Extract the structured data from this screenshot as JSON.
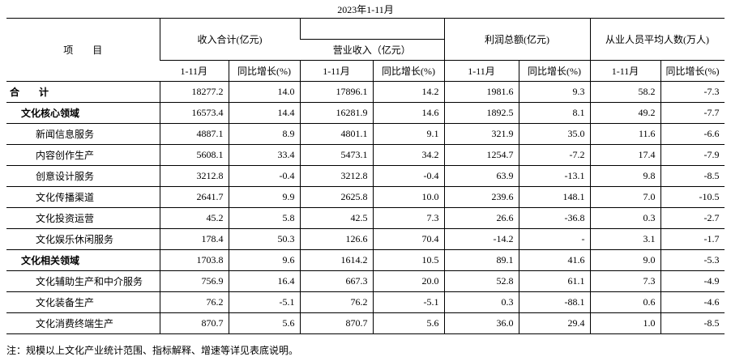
{
  "subtitle": "2023年1-11月",
  "table": {
    "item_header": "项　　目",
    "group_headers": [
      "收入合计(亿元)",
      "利润总额(亿元)",
      "从业人员平均人数(万人)"
    ],
    "sub_group_header": "营业收入（亿元）",
    "column_headers": [
      "1-11月",
      "同比增长(%)",
      "1-11月",
      "同比增长(%)",
      "1-11月",
      "同比增长(%)",
      "1-11月",
      "同比增长(%)"
    ],
    "rows": [
      {
        "name": "合　　计",
        "level": 0,
        "cells": [
          "18277.2",
          "14.0",
          "17896.1",
          "14.2",
          "1981.6",
          "9.3",
          "58.2",
          "-7.3"
        ]
      },
      {
        "name": "文化核心领域",
        "level": 1,
        "cells": [
          "16573.4",
          "14.4",
          "16281.9",
          "14.6",
          "1892.5",
          "8.1",
          "49.2",
          "-7.7"
        ]
      },
      {
        "name": "新闻信息服务",
        "level": 2,
        "cells": [
          "4887.1",
          "8.9",
          "4801.1",
          "9.1",
          "321.9",
          "35.0",
          "11.6",
          "-6.6"
        ]
      },
      {
        "name": "内容创作生产",
        "level": 2,
        "cells": [
          "5608.1",
          "33.4",
          "5473.1",
          "34.2",
          "1254.7",
          "-7.2",
          "17.4",
          "-7.9"
        ]
      },
      {
        "name": "创意设计服务",
        "level": 2,
        "cells": [
          "3212.8",
          "-0.4",
          "3212.8",
          "-0.4",
          "63.9",
          "-13.1",
          "9.8",
          "-8.5"
        ]
      },
      {
        "name": "文化传播渠道",
        "level": 2,
        "cells": [
          "2641.7",
          "9.9",
          "2625.8",
          "10.0",
          "239.6",
          "148.1",
          "7.0",
          "-10.5"
        ]
      },
      {
        "name": "文化投资运营",
        "level": 2,
        "cells": [
          "45.2",
          "5.8",
          "42.5",
          "7.3",
          "26.6",
          "-36.8",
          "0.3",
          "-2.7"
        ]
      },
      {
        "name": "文化娱乐休闲服务",
        "level": 2,
        "cells": [
          "178.4",
          "50.3",
          "126.6",
          "70.4",
          "-14.2",
          "-",
          "3.1",
          "-1.7"
        ]
      },
      {
        "name": "文化相关领域",
        "level": 1,
        "cells": [
          "1703.8",
          "9.6",
          "1614.2",
          "10.5",
          "89.1",
          "41.6",
          "9.0",
          "-5.3"
        ]
      },
      {
        "name": "文化辅助生产和中介服务",
        "level": 2,
        "cells": [
          "756.9",
          "16.4",
          "667.3",
          "20.0",
          "52.8",
          "61.1",
          "7.3",
          "-4.9"
        ]
      },
      {
        "name": "文化装备生产",
        "level": 2,
        "cells": [
          "76.2",
          "-5.1",
          "76.2",
          "-5.1",
          "0.3",
          "-88.1",
          "0.6",
          "-4.6"
        ]
      },
      {
        "name": "文化消费终端生产",
        "level": 2,
        "cells": [
          "870.7",
          "5.6",
          "870.7",
          "5.6",
          "36.0",
          "29.4",
          "1.0",
          "-8.5"
        ]
      }
    ]
  },
  "note": "注：规模以上文化产业统计范围、指标解释、增速等详见表底说明。"
}
